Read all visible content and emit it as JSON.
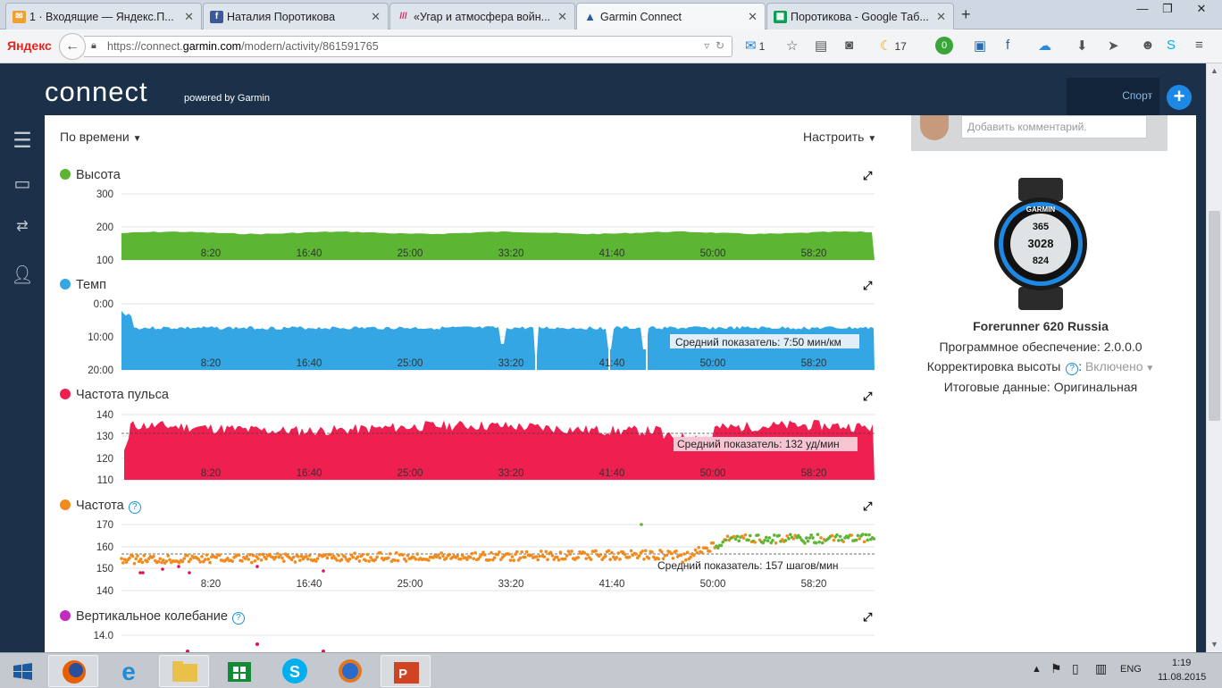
{
  "browser": {
    "tabs": [
      {
        "title": "1 · Входящие — Яндекс.П...",
        "icon": "mail-icon",
        "color": "#f0a030"
      },
      {
        "title": "Наталия Поротикова",
        "icon": "facebook-icon",
        "color": "#3b5998"
      },
      {
        "title": "«Угар и атмосфера войн...",
        "icon": "slashes-icon",
        "color": "#e0205a"
      },
      {
        "title": "Garmin Connect",
        "icon": "garmin-triangle-icon",
        "color": "#1b3049"
      },
      {
        "title": "Поротикова - Google Таб...",
        "icon": "sheets-icon",
        "color": "#0f9d58"
      }
    ],
    "active_tab": 3,
    "yandex_logo": "Яндекс",
    "url": {
      "prefix": "https://connect.",
      "host": "garmin.com",
      "path": "/modern/activity/861591765"
    },
    "mail_count": "1",
    "weather_count": "17",
    "green_badge": "0"
  },
  "garmin": {
    "logo": "connect",
    "powered": "powered by Garmin",
    "sport_label": "Спорт"
  },
  "controls": {
    "by_time": "По времени",
    "customize": "Настроить"
  },
  "charts": [
    {
      "id": "elevation",
      "title": "Высота",
      "color": "#5db534",
      "y_ticks": [
        "300",
        "200",
        "100"
      ],
      "avg_label": ""
    },
    {
      "id": "pace",
      "title": "Темп",
      "color": "#33a6e3",
      "y_ticks": [
        "0:00",
        "10:00",
        "20:00"
      ],
      "avg_label": "Средний показатель: 7:50 мин/км"
    },
    {
      "id": "heart_rate",
      "title": "Частота пульса",
      "color": "#ef1f4f",
      "y_ticks": [
        "140",
        "130",
        "120",
        "110"
      ],
      "avg_label": "Средний показатель: 132 уд/мин"
    },
    {
      "id": "cadence",
      "title": "Частота",
      "color": "#f28a1c",
      "y_ticks": [
        "170",
        "160",
        "150",
        "140"
      ],
      "avg_label": "Средний показатель: 157 шагов/мин"
    },
    {
      "id": "vertical_oscillation",
      "title": "Вертикальное колебание",
      "color": "#c32ac0",
      "y_ticks": [
        "14.0"
      ],
      "avg_label": ""
    }
  ],
  "x_ticks": [
    "8:20",
    "16:40",
    "25:00",
    "33:20",
    "41:40",
    "50:00",
    "58:20"
  ],
  "chart_data": [
    {
      "type": "area",
      "title": "Высота",
      "ylabel": "",
      "y_ticks": [
        300,
        200,
        100
      ],
      "ylim": [
        100,
        300
      ],
      "x_ticks": [
        "8:20",
        "16:40",
        "25:00",
        "33:20",
        "41:40",
        "50:00",
        "58:20"
      ],
      "series": [
        {
          "values_approx": 184
        }
      ]
    },
    {
      "type": "area",
      "title": "Темп",
      "y_ticks": [
        "0:00",
        "10:00",
        "20:00"
      ],
      "ylim_minutes": [
        0,
        20
      ],
      "average": "7:50 мин/км",
      "series": [
        {
          "values_approx_min_per_km": 8
        }
      ]
    },
    {
      "type": "area",
      "title": "Частота пульса",
      "y_ticks": [
        140,
        130,
        120,
        110
      ],
      "ylim": [
        110,
        140
      ],
      "average": 132,
      "unit": "уд/мин"
    },
    {
      "type": "scatter",
      "title": "Частота",
      "y_ticks": [
        170,
        160,
        150,
        140
      ],
      "ylim": [
        140,
        170
      ],
      "average": 157,
      "unit": "шагов/мин"
    },
    {
      "type": "scatter",
      "title": "Вертикальное колебание",
      "y_ticks": [
        14.0
      ]
    }
  ],
  "comment_placeholder": "Добавить комментарий.",
  "device": {
    "name": "Forerunner 620 Russia",
    "software": "Программное обеспечение: 2.0.0.0",
    "elev_label": "Корректировка высоты",
    "elev_value": "Включено",
    "summary": "Итоговые данные: Оригинальная",
    "watch_brand": "GARMIN",
    "watch_values": [
      "365",
      "3028",
      "824"
    ]
  },
  "taskbar": {
    "lang": "ENG",
    "time": "1:19",
    "date": "11.08.2015"
  }
}
